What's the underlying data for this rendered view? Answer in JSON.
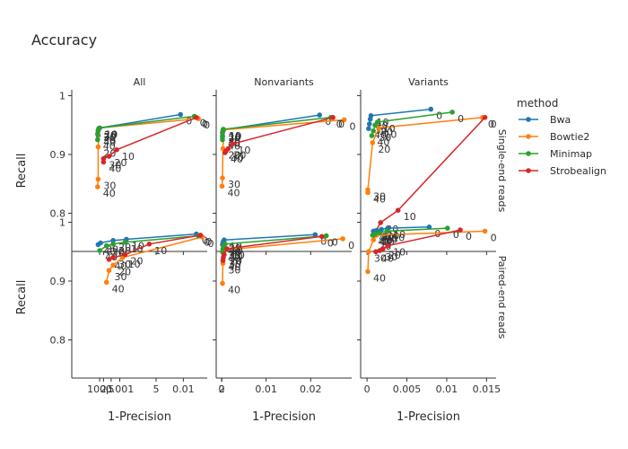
{
  "chart_data": {
    "type": "line",
    "title": "Accuracy",
    "legend": {
      "title": "method",
      "placement": "right",
      "entries": [
        "Bwa",
        "Bowtie2",
        "Minimap",
        "Strobealign"
      ]
    },
    "colors": {
      "Bwa": "#1f77b4",
      "Bowtie2": "#ff7f0e",
      "Minimap": "#2ca02c",
      "Strobealign": "#d62728"
    },
    "columns": [
      "All",
      "Nonvariants",
      "Variants"
    ],
    "rows": [
      "Single-end reads",
      "Paired-end reads"
    ],
    "xlabel": "1-Precision",
    "ylabel": "Recall",
    "ylim": [
      0.735,
      1.01
    ],
    "yticks": [
      0.8,
      0.9,
      1
    ],
    "ytick_labels": [
      "0.8",
      "0.9",
      "1"
    ],
    "xaxes": [
      {
        "scale": "sqrt",
        "xlim": [
          -0.0004,
          0.0158
        ],
        "ticks": [
          0.0001,
          0.0002,
          0.0005,
          0.001,
          0.005,
          0.01,
          0.02
        ],
        "tick_labels": [
          "100µ",
          "2",
          "5",
          "0.001",
          "5",
          "0.01",
          "2"
        ]
      },
      {
        "scale": "linear",
        "xlim": [
          -0.0012,
          0.0292
        ],
        "ticks": [
          0,
          0.01,
          0.02
        ],
        "tick_labels": [
          "0",
          "0.01",
          "0.02"
        ]
      },
      {
        "scale": "linear",
        "xlim": [
          -0.0008,
          0.0162
        ],
        "ticks": [
          0,
          0.005,
          0.01,
          0.015
        ],
        "tick_labels": [
          "0",
          "0.005",
          "0.01",
          "0.015"
        ]
      }
    ],
    "series_labels": [
      "0",
      "10",
      "20",
      "30",
      "40"
    ],
    "panels": [
      {
        "col": 0,
        "row": 0,
        "series": [
          {
            "name": "Bwa",
            "x": [
              0.0094,
              0.0001,
              8e-05,
              7e-05,
              7e-05
            ],
            "y": [
              0.968,
              0.945,
              0.944,
              0.94,
              0.932
            ]
          },
          {
            "name": "Bowtie2",
            "x": [
              0.0135,
              0.0001,
              7e-05,
              7e-05,
              6e-05
            ],
            "y": [
              0.961,
              0.945,
              0.913,
              0.858,
              0.845
            ]
          },
          {
            "name": "Minimap",
            "x": [
              0.0125,
              0.0001,
              7e-05,
              6e-05,
              6e-05
            ],
            "y": [
              0.965,
              0.945,
              0.941,
              0.935,
              0.925
            ]
          },
          {
            "name": "Strobealign",
            "x": [
              0.013,
              0.0008,
              0.0004,
              0.0002,
              0.0002
            ],
            "y": [
              0.963,
              0.908,
              0.897,
              0.893,
              0.887
            ]
          }
        ]
      },
      {
        "col": 1,
        "row": 0,
        "series": [
          {
            "name": "Bwa",
            "x": [
              0.022,
              0.0005,
              0.0003,
              0.0002,
              0.0002
            ],
            "y": [
              0.967,
              0.942,
              0.94,
              0.937,
              0.93
            ]
          },
          {
            "name": "Bowtie2",
            "x": [
              0.0275,
              0.0005,
              0.0003,
              0.0002,
              0.0001
            ],
            "y": [
              0.959,
              0.942,
              0.91,
              0.86,
              0.846
            ]
          },
          {
            "name": "Minimap",
            "x": [
              0.0245,
              0.0004,
              0.0003,
              0.0002,
              0.0002
            ],
            "y": [
              0.963,
              0.943,
              0.94,
              0.932,
              0.925
            ]
          },
          {
            "name": "Strobealign",
            "x": [
              0.025,
              0.0025,
              0.0015,
              0.001,
              0.0008
            ],
            "y": [
              0.963,
              0.918,
              0.91,
              0.906,
              0.903
            ]
          }
        ]
      },
      {
        "col": 2,
        "row": 0,
        "series": [
          {
            "name": "Bwa",
            "x": [
              0.008,
              0.0005,
              0.0004,
              0.0003,
              0.0002
            ],
            "y": [
              0.977,
              0.966,
              0.96,
              0.952,
              0.944
            ]
          },
          {
            "name": "Bowtie2",
            "x": [
              0.0145,
              0.0015,
              0.0007,
              0.0001,
              0.0001
            ],
            "y": [
              0.963,
              0.945,
              0.92,
              0.84,
              0.835
            ]
          },
          {
            "name": "Minimap",
            "x": [
              0.0107,
              0.0013,
              0.001,
              0.0008,
              0.0006
            ],
            "y": [
              0.972,
              0.955,
              0.95,
              0.94,
              0.932
            ]
          },
          {
            "name": "Strobealign",
            "x": [
              0.0148,
              0.0039,
              0.0017,
              0.0011,
              0.0009
            ],
            "y": [
              0.963,
              0.805,
              0.784,
              0.77,
              0.763
            ]
          }
        ]
      },
      {
        "col": 0,
        "row": 1,
        "series": [
          {
            "name": "Bwa",
            "x": [
              0.013,
              0.0015,
              0.0006,
              0.00012,
              7e-05
            ],
            "y": [
              0.98,
              0.971,
              0.969,
              0.965,
              0.962
            ]
          },
          {
            "name": "Bowtie2",
            "x": [
              0.0145,
              0.0012,
              0.0006,
              0.0004,
              0.0003
            ],
            "y": [
              0.975,
              0.94,
              0.927,
              0.918,
              0.898
            ]
          },
          {
            "name": "Minimap",
            "x": [
              0.0135,
              0.0014,
              0.0006,
              0.0003,
              0.0001
            ],
            "y": [
              0.977,
              0.966,
              0.963,
              0.96,
              0.952
            ]
          },
          {
            "name": "Strobealign",
            "x": [
              0.014,
              0.004,
              0.0014,
              0.0006,
              0.0004
            ],
            "y": [
              0.978,
              0.963,
              0.945,
              0.94,
              0.937
            ]
          }
        ]
      },
      {
        "col": 1,
        "row": 1,
        "series": [
          {
            "name": "Bwa",
            "x": [
              0.021,
              0.0006,
              0.0004,
              0.0003,
              0.0002
            ],
            "y": [
              0.979,
              0.97,
              0.967,
              0.965,
              0.962
            ]
          },
          {
            "name": "Bowtie2",
            "x": [
              0.0272,
              0.0008,
              0.0005,
              0.0003,
              0.0002
            ],
            "y": [
              0.972,
              0.953,
              0.945,
              0.93,
              0.896
            ]
          },
          {
            "name": "Minimap",
            "x": [
              0.0235,
              0.0008,
              0.0005,
              0.0003,
              0.0002
            ],
            "y": [
              0.977,
              0.963,
              0.96,
              0.955,
              0.95
            ]
          },
          {
            "name": "Strobealign",
            "x": [
              0.0225,
              0.0012,
              0.0006,
              0.0004,
              0.0003
            ],
            "y": [
              0.976,
              0.955,
              0.945,
              0.94,
              0.935
            ]
          }
        ]
      },
      {
        "col": 2,
        "row": 1,
        "series": [
          {
            "name": "Bwa",
            "x": [
              0.0078,
              0.0026,
              0.0018,
              0.0012,
              0.0008
            ],
            "y": [
              0.992,
              0.99,
              0.988,
              0.986,
              0.985
            ]
          },
          {
            "name": "Bowtie2",
            "x": [
              0.0148,
              0.0012,
              0.0008,
              0.0002,
              0.0001
            ],
            "y": [
              0.985,
              0.978,
              0.97,
              0.95,
              0.916
            ]
          },
          {
            "name": "Minimap",
            "x": [
              0.0101,
              0.0025,
              0.0016,
              0.001,
              0.0007
            ],
            "y": [
              0.99,
              0.985,
              0.982,
              0.98,
              0.978
            ]
          },
          {
            "name": "Strobealign",
            "x": [
              0.0117,
              0.0026,
              0.002,
              0.0016,
              0.0011
            ],
            "y": [
              0.987,
              0.96,
              0.955,
              0.952,
              0.95
            ]
          }
        ]
      }
    ]
  }
}
